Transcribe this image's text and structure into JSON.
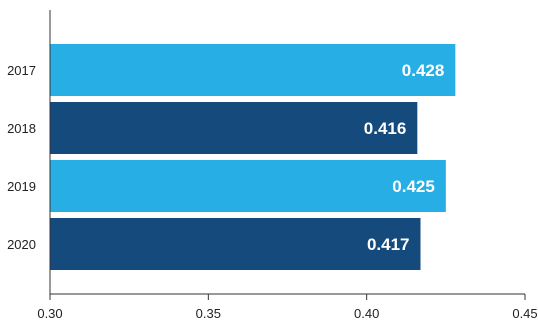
{
  "chart_data": {
    "type": "bar",
    "orientation": "horizontal",
    "categories": [
      "2017",
      "2018",
      "2019",
      "2020"
    ],
    "values": [
      0.428,
      0.416,
      0.425,
      0.417
    ],
    "value_labels": [
      "0.428",
      "0.416",
      "0.425",
      "0.417"
    ],
    "bar_colors": [
      "#27aee4",
      "#154a7c",
      "#27aee4",
      "#154a7c"
    ],
    "title": "",
    "xlabel": "",
    "ylabel": "",
    "xlim": [
      0.3,
      0.45
    ],
    "x_ticks": [
      0.3,
      0.35,
      0.4,
      0.45
    ],
    "x_tick_labels": [
      "0.30",
      "0.35",
      "0.40",
      "0.45"
    ],
    "grid": false,
    "legend": "none"
  }
}
